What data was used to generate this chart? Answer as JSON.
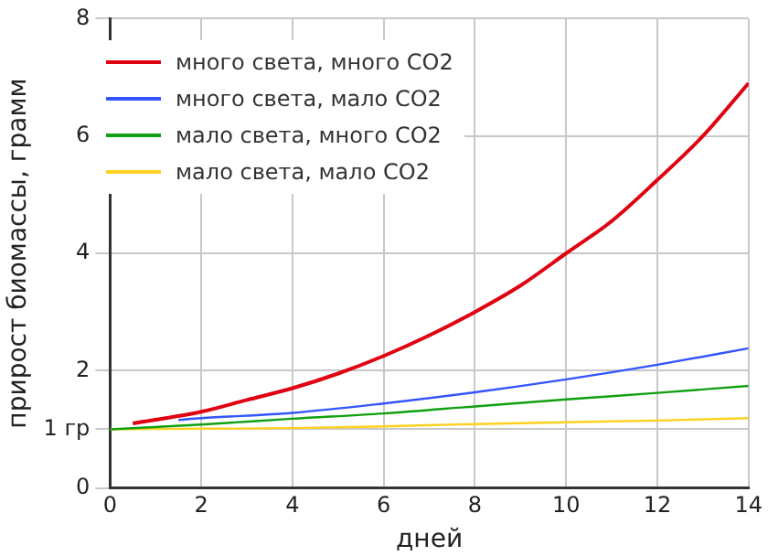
{
  "chart_data": {
    "type": "line",
    "xlabel": "дней",
    "ylabel": "прирост биомассы, грамм",
    "xlim": [
      0,
      14
    ],
    "xticks": [
      0,
      2,
      4,
      6,
      8,
      10,
      12,
      14
    ],
    "ylim": [
      0,
      8
    ],
    "yticks": [
      0,
      {
        "value": 1,
        "label": "1 гр"
      },
      2,
      4,
      6,
      8
    ],
    "grid": true,
    "legend": "top left",
    "marker": "none",
    "line_style": "solid",
    "series": [
      {
        "name": "много света, много CO2",
        "color": "#e00010",
        "x": [
          0.5,
          2,
          3,
          4,
          5,
          6,
          7,
          8,
          9,
          10,
          11,
          12,
          13,
          14
        ],
        "values": [
          1.1,
          1.3,
          1.5,
          1.7,
          1.95,
          2.25,
          2.6,
          3.0,
          3.45,
          4.0,
          4.55,
          5.25,
          6.0,
          6.9
        ]
      },
      {
        "name": "много света, мало CO2",
        "color": "#3355ff",
        "x": [
          1.5,
          2,
          4,
          6,
          8,
          10,
          12,
          14
        ],
        "values": [
          1.16,
          1.19,
          1.28,
          1.44,
          1.63,
          1.85,
          2.1,
          2.38
        ]
      },
      {
        "name": "мало света, много CO2",
        "color": "#10a010",
        "x": [
          0,
          2,
          4,
          6,
          8,
          10,
          12,
          14
        ],
        "values": [
          1.0,
          1.08,
          1.18,
          1.27,
          1.39,
          1.51,
          1.62,
          1.74
        ]
      },
      {
        "name": "мало света, мало CO2",
        "color": "#ffd020",
        "x": [
          0,
          2,
          4,
          6,
          8,
          10,
          12,
          14
        ],
        "values": [
          1.0,
          1.01,
          1.02,
          1.05,
          1.09,
          1.12,
          1.15,
          1.19
        ]
      }
    ]
  }
}
